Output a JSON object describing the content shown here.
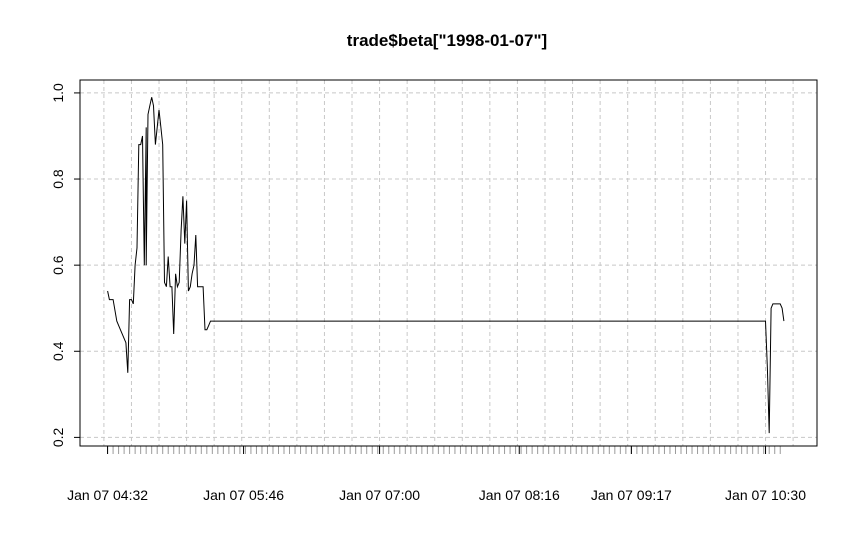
{
  "chart_data": {
    "type": "line",
    "title": "trade$beta[\"1998-01-07\"]",
    "xlabel": "",
    "ylabel": "",
    "x_unit": "time of day (1998-01-07)",
    "xlim": [
      "04:17",
      "10:58"
    ],
    "ylim": [
      0.18,
      1.03
    ],
    "y_ticks": [
      0.2,
      0.4,
      0.6,
      0.8,
      1.0
    ],
    "y_tick_labels": [
      "0.2",
      "0.4",
      "0.6",
      "0.8",
      "1.0"
    ],
    "x_ticks": [
      "04:32",
      "05:46",
      "07:00",
      "08:16",
      "09:17",
      "10:30"
    ],
    "x_tick_labels": [
      "Jan 07 04:32",
      "Jan 07 05:46",
      "Jan 07 07:00",
      "Jan 07 08:16",
      "Jan 07 09:17",
      "Jan 07 10:30"
    ],
    "grid": true,
    "legend": "none",
    "series": [
      {
        "x": [
          "04:32",
          "04:33",
          "04:35",
          "04:37",
          "04:39",
          "04:41",
          "04:42",
          "04:43",
          "04:44",
          "04:45",
          "04:46",
          "04:47",
          "04:48",
          "04:49",
          "04:50",
          "04:51",
          "04:52",
          "04:53",
          "04:53",
          "04:54",
          "04:55",
          "04:56",
          "04:57",
          "04:58",
          "04:59",
          "05:00",
          "05:01",
          "05:02",
          "05:03",
          "05:03",
          "05:04",
          "05:05",
          "05:06",
          "05:07",
          "05:08",
          "05:09",
          "05:10",
          "05:11",
          "05:12",
          "05:13",
          "05:14",
          "05:15",
          "05:16",
          "05:17",
          "05:18",
          "05:19",
          "05:20",
          "05:21",
          "05:22",
          "05:23",
          "05:24",
          "05:25",
          "05:26",
          "05:27",
          "05:28",
          "05:29",
          "05:30",
          "05:31",
          "05:32",
          "05:33",
          "05:34",
          "05:35",
          "05:36",
          "05:37",
          "05:38",
          "05:39",
          "10:30",
          "10:31",
          "10:32",
          "10:33",
          "10:34",
          "10:35",
          "10:36",
          "10:37",
          "10:38",
          "10:39",
          "10:40"
        ],
        "y": [
          0.54,
          0.52,
          0.52,
          0.47,
          0.45,
          0.43,
          0.42,
          0.35,
          0.52,
          0.52,
          0.51,
          0.6,
          0.64,
          0.88,
          0.88,
          0.9,
          0.6,
          0.92,
          0.6,
          0.95,
          0.97,
          0.99,
          0.97,
          0.88,
          0.92,
          0.96,
          0.92,
          0.88,
          0.56,
          0.56,
          0.55,
          0.62,
          0.55,
          0.55,
          0.44,
          0.58,
          0.55,
          0.56,
          0.68,
          0.76,
          0.65,
          0.75,
          0.54,
          0.55,
          0.58,
          0.6,
          0.67,
          0.55,
          0.55,
          0.55,
          0.55,
          0.45,
          0.45,
          0.46,
          0.47,
          0.47,
          0.47,
          0.47,
          0.47,
          0.47,
          0.47,
          0.47,
          0.47,
          0.47,
          0.47,
          0.47,
          0.47,
          0.36,
          0.21,
          0.5,
          0.51,
          0.51,
          0.51,
          0.51,
          0.51,
          0.5,
          0.47
        ]
      }
    ]
  }
}
